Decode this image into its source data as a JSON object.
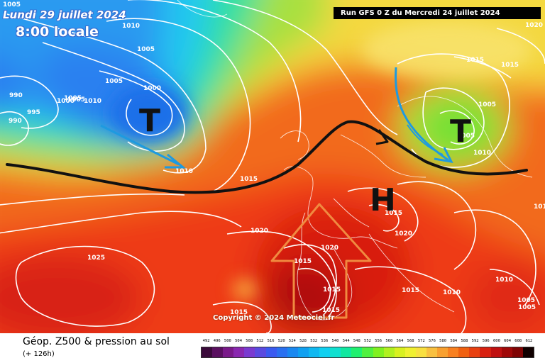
{
  "header": {
    "date": "Lundi 29 juillet 2024",
    "time": "8:00 locale",
    "run": "Run GFS 0 Z du Mercredi 24 juillet 2024"
  },
  "footer": {
    "title": "Géop. Z500 & pression au sol",
    "lead": "(+ 126h)",
    "copyright": "Copyright © 2024 Meteociel.fr"
  },
  "symbols": {
    "low_1": "T",
    "low_2": "T",
    "high_1": "H"
  },
  "isobar_labels": [
    "1005",
    "1010",
    "1005",
    "990",
    "995",
    "990",
    "1005",
    "1000",
    "1005",
    "1010",
    "1000",
    "1010",
    "1015",
    "1020",
    "1025",
    "1020",
    "1015",
    "1015",
    "1015",
    "1015",
    "1020",
    "1015",
    "1015",
    "1005",
    "1010",
    "1015",
    "1015",
    "1005",
    "1010",
    "1010",
    "1005",
    "1015",
    "1020",
    "1005",
    "1005"
  ],
  "scale": {
    "labels": [
      "492",
      "496",
      "500",
      "504",
      "508",
      "512",
      "516",
      "520",
      "524",
      "528",
      "532",
      "536",
      "540",
      "544",
      "548",
      "552",
      "556",
      "560",
      "564",
      "568",
      "572",
      "576",
      "580",
      "584",
      "588",
      "592",
      "596",
      "600",
      "604",
      "608",
      "612"
    ],
    "colors": [
      "#3a0a3a",
      "#5a1060",
      "#7a1a8a",
      "#8a28b0",
      "#7a3ad0",
      "#5a4ae0",
      "#3a5af0",
      "#2a70f0",
      "#1a88f0",
      "#10a0f0",
      "#10b8f0",
      "#10d0f0",
      "#10e0d0",
      "#10e8a0",
      "#20f070",
      "#50f040",
      "#80f020",
      "#b0f020",
      "#d8f020",
      "#f0f030",
      "#f8e040",
      "#f8c040",
      "#f8a030",
      "#f88020",
      "#f06010",
      "#e84010",
      "#d82010",
      "#c01010",
      "#a00808",
      "#800404",
      "#100000"
    ]
  },
  "colors": {
    "front": "#111111",
    "arrow_blue": "#1e9ae0",
    "arrow_orange": "#f08a40"
  }
}
